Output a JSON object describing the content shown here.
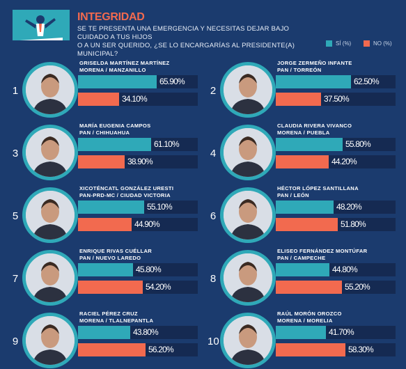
{
  "header": {
    "title": "INTEGRIDAD",
    "question_line1": "SE TE PRESENTA UNA EMERGENCIA Y NECESITAS DEJAR BAJO CUIDADO A TUS HIJOS",
    "question_line2": "O A UN SER QUERIDO, ¿SE LO ENCARGARÍAS AL PRESIDENTE(A) MUNICIPAL?",
    "legend_yes": "SÍ (%)",
    "legend_no": "NO (%)"
  },
  "colors": {
    "yes": "#2fa9b8",
    "no": "#f26a4f",
    "background": "#1b3b6e",
    "track": "#152a52"
  },
  "chart_data": {
    "type": "bar",
    "title": "INTEGRIDAD",
    "series": [
      {
        "name": "SÍ (%)"
      },
      {
        "name": "NO (%)"
      }
    ],
    "candidates": [
      {
        "rank": "1",
        "name": "GRISELDA MARTÍNEZ MARTÍNEZ",
        "party": "MORENA / MANZANILLO",
        "yes": 65.9,
        "yes_label": "65.90%",
        "no": 34.1,
        "no_label": "34.10%"
      },
      {
        "rank": "2",
        "name": "JORGE ZERMEÑO INFANTE",
        "party": "PAN / TORREÓN",
        "yes": 62.5,
        "yes_label": "62.50%",
        "no": 37.5,
        "no_label": "37.50%"
      },
      {
        "rank": "3",
        "name": "MARÍA EUGENIA CAMPOS",
        "party": "PAN / CHIHUAHUA",
        "yes": 61.1,
        "yes_label": "61.10%",
        "no": 38.9,
        "no_label": "38.90%"
      },
      {
        "rank": "4",
        "name": "CLAUDIA RIVERA VIVANCO",
        "party": "MORENA / PUEBLA",
        "yes": 55.8,
        "yes_label": "55.80%",
        "no": 44.2,
        "no_label": "44.20%"
      },
      {
        "rank": "5",
        "name": "XICOTÉNCATL GONZÁLEZ URESTI",
        "party": "PAN-PRD-MC / CIUDAD VICTORIA",
        "yes": 55.1,
        "yes_label": "55.10%",
        "no": 44.9,
        "no_label": "44.90%"
      },
      {
        "rank": "6",
        "name": "HÉCTOR LÓPEZ SANTILLANA",
        "party": "PAN / LEÓN",
        "yes": 48.2,
        "yes_label": "48.20%",
        "no": 51.8,
        "no_label": "51.80%"
      },
      {
        "rank": "7",
        "name": "ENRIQUE RIVAS CUÉLLAR",
        "party": "PAN / NUEVO LAREDO",
        "yes": 45.8,
        "yes_label": "45.80%",
        "no": 54.2,
        "no_label": "54.20%"
      },
      {
        "rank": "8",
        "name": "ELISEO FERNÁNDEZ MONTÚFAR",
        "party": "PAN / CAMPECHE",
        "yes": 44.8,
        "yes_label": "44.80%",
        "no": 55.2,
        "no_label": "55.20%"
      },
      {
        "rank": "9",
        "name": "RACIEL PÉREZ CRUZ",
        "party": "MORENA / TLALNEPANTLA",
        "yes": 43.8,
        "yes_label": "43.80%",
        "no": 56.2,
        "no_label": "56.20%"
      },
      {
        "rank": "10",
        "name": "RAÚL MORÓN OROZCO",
        "party": "MORENA / MORELIA",
        "yes": 41.7,
        "yes_label": "41.70%",
        "no": 58.3,
        "no_label": "58.30%"
      }
    ]
  }
}
